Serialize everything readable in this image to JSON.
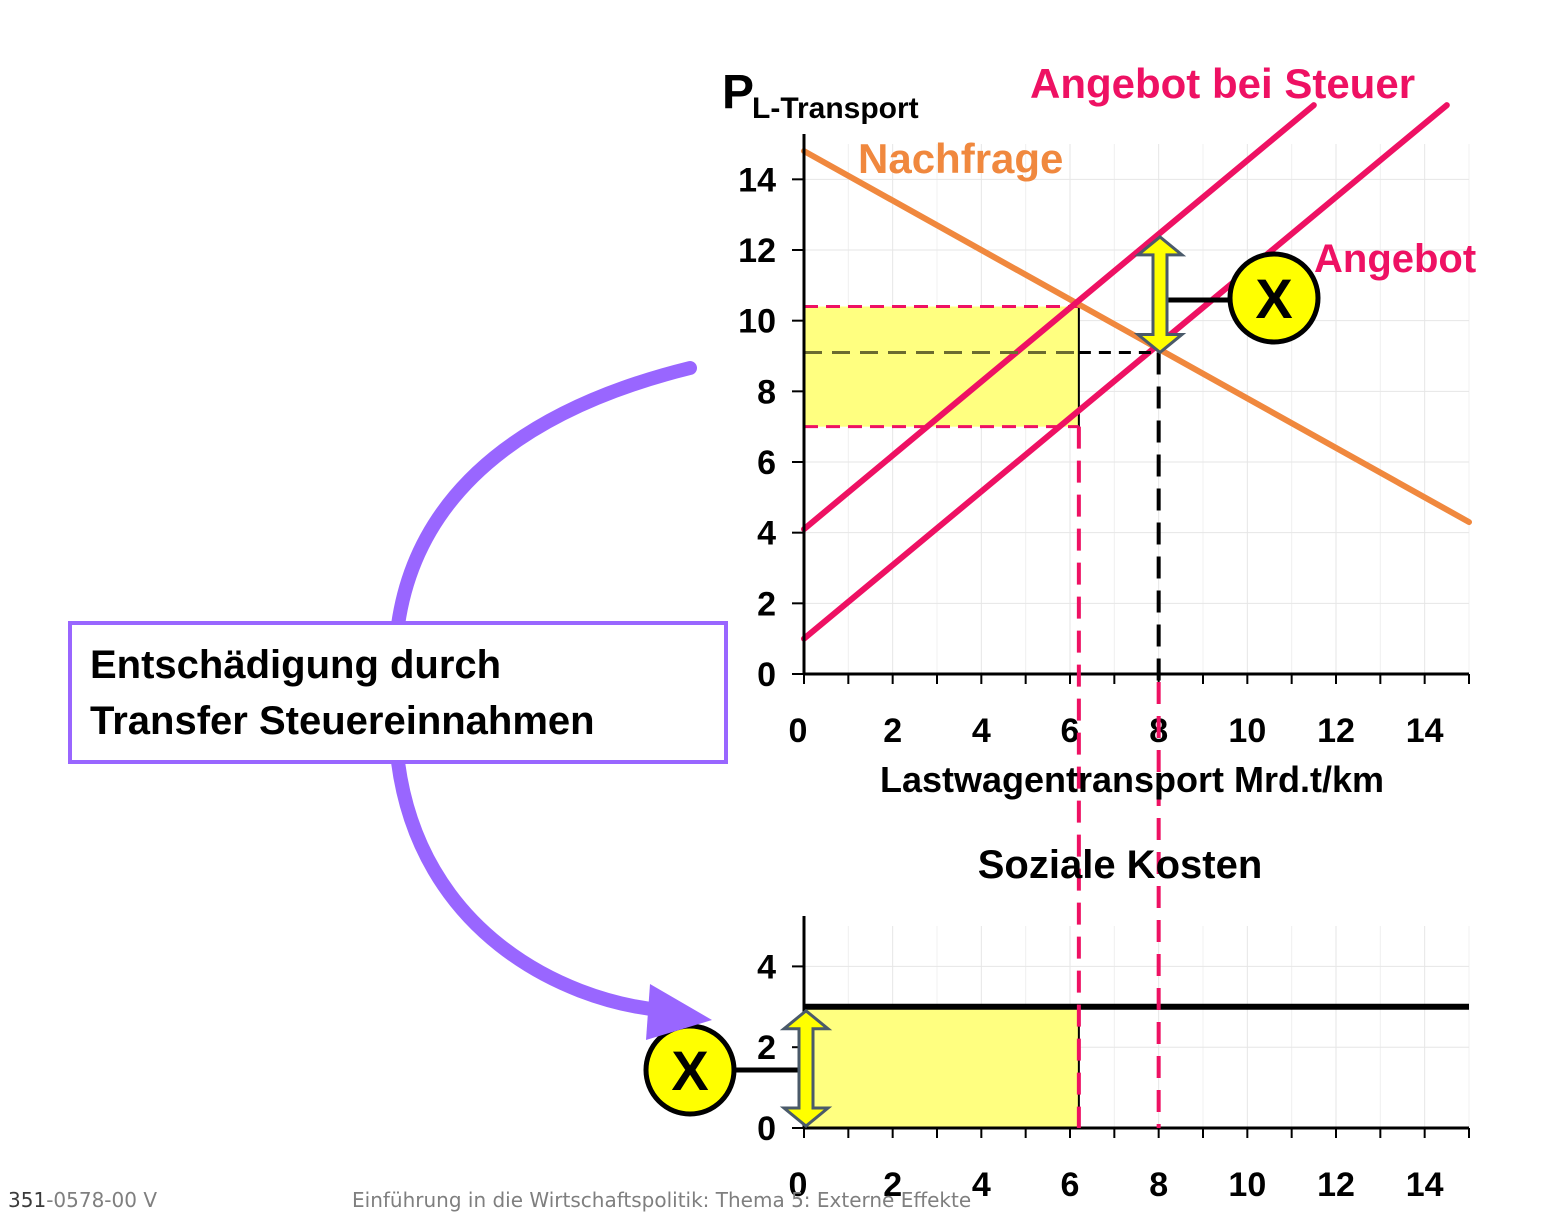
{
  "colors": {
    "demand": "#f0883e",
    "supply": "#ee1163",
    "tax_area": "#ffff80",
    "arrow": "#9966ff",
    "marker_fill": "#ffff00",
    "axis": "#000000"
  },
  "chart_data": [
    {
      "id": "market",
      "type": "line",
      "ylabel_main": "P",
      "ylabel_sub": "L-Transport",
      "xlabel": "Lastwagentransport Mrd.t/km",
      "xlim": [
        0,
        15
      ],
      "ylim": [
        0,
        15
      ],
      "x_ticks": [
        0,
        2,
        4,
        6,
        8,
        10,
        12,
        14
      ],
      "y_ticks": [
        0,
        2,
        4,
        6,
        8,
        10,
        12,
        14
      ],
      "grid": true,
      "series": [
        {
          "name": "Nachfrage",
          "color": "#f0883e",
          "x": [
            0,
            15
          ],
          "y": [
            14.8,
            4.3
          ]
        },
        {
          "name": "Angebot bei Steuer",
          "color": "#ee1163",
          "x": [
            0,
            11.5
          ],
          "y": [
            4.1,
            16.1
          ]
        },
        {
          "name": "Angebot",
          "color": "#ee1163",
          "x": [
            0,
            14.5
          ],
          "y": [
            1.0,
            16.1
          ]
        }
      ],
      "tax_rectangle": {
        "x": [
          0,
          6.2
        ],
        "y": [
          7.0,
          10.4
        ]
      },
      "equilibrium": {
        "x": 8,
        "y": 9.1
      },
      "tax_marker": {
        "label": "X",
        "y_from": 9.1,
        "y_to": 12.2
      }
    },
    {
      "id": "social_costs",
      "type": "line",
      "title": "Soziale Kosten",
      "xlim": [
        0,
        15
      ],
      "ylim": [
        0,
        5
      ],
      "x_ticks": [
        0,
        2,
        4,
        6,
        8,
        10,
        12,
        14
      ],
      "y_ticks": [
        0,
        2,
        4
      ],
      "grid": true,
      "series": [
        {
          "color": "#000000",
          "x": [
            0,
            15
          ],
          "y": [
            3,
            3
          ]
        }
      ],
      "cost_rectangle": {
        "x": [
          0,
          6.2
        ],
        "y": [
          0,
          3
        ]
      },
      "cost_marker": {
        "label": "X",
        "y_from": 0,
        "y_to": 3
      }
    }
  ],
  "callout": {
    "text_line1": "Entschädigung durch",
    "text_line2": "Transfer Steuereinnahmen"
  },
  "footer": {
    "code_strong": "351",
    "code_rest": "-0578-00 V",
    "title": "Einführung in die Wirtschaftspolitik: Thema 5: Externe Effekte"
  }
}
